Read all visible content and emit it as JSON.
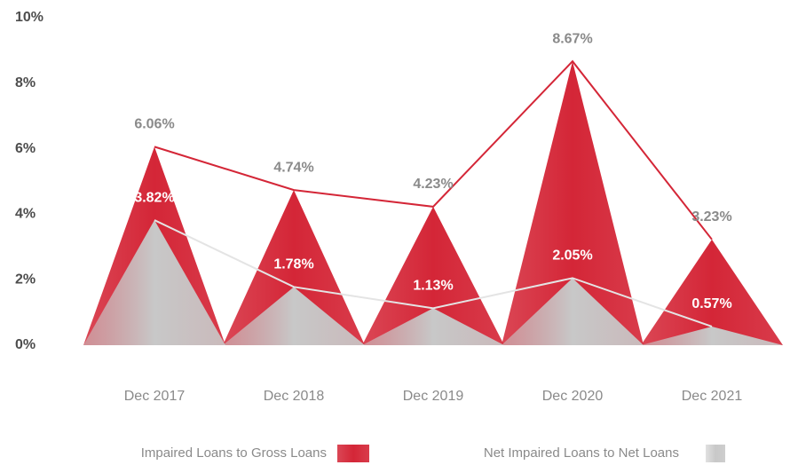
{
  "chart_data": {
    "type": "bar",
    "categories": [
      "Dec 2017",
      "Dec 2018",
      "Dec 2019",
      "Dec 2020",
      "Dec 2021"
    ],
    "series": [
      {
        "name": "Impaired Loans to Gross Loans",
        "color": "#d42637",
        "values": [
          6.06,
          4.74,
          4.23,
          8.67,
          3.23
        ],
        "value_labels": [
          "6.06%",
          "4.74%",
          "4.23%",
          "8.67%",
          "3.23%"
        ]
      },
      {
        "name": "Net Impaired Loans to Net Loans",
        "color": "#c8c8c8",
        "values": [
          3.82,
          1.78,
          1.13,
          2.05,
          0.57
        ],
        "value_labels": [
          "3.82%",
          "1.78%",
          "1.13%",
          "2.05%",
          "0.57%"
        ]
      }
    ],
    "ylim": [
      0,
      10
    ],
    "yticks": [
      {
        "value": 0,
        "label": "0%"
      },
      {
        "value": 2,
        "label": "2%"
      },
      {
        "value": 4,
        "label": "4%"
      },
      {
        "value": 6,
        "label": "6%"
      },
      {
        "value": 8,
        "label": "8%"
      },
      {
        "value": 10,
        "label": "10%"
      }
    ]
  }
}
